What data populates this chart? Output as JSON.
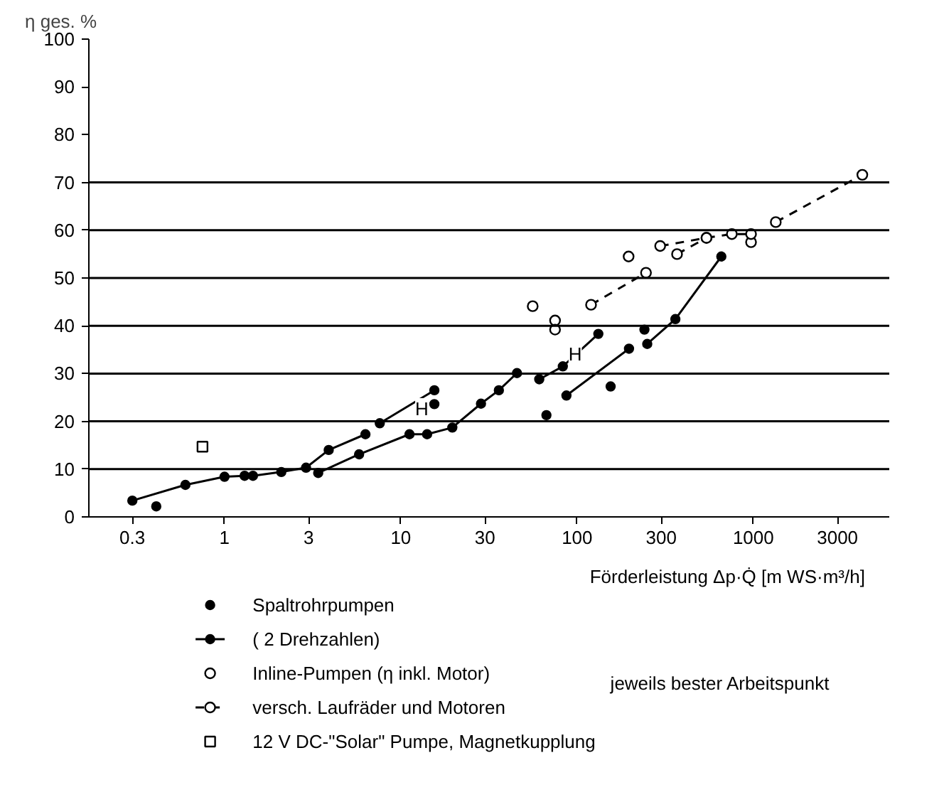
{
  "chart_data": {
    "type": "line",
    "ylabel": "η ges. %",
    "xlabel": "Förderleistung Δp·Q̇ [m WS·m³/h]",
    "log": "x",
    "xlim": [
      0.17,
      5900
    ],
    "xticks": [
      0.3,
      1,
      3,
      10,
      30,
      100,
      300,
      1000,
      3000
    ],
    "ylim": [
      0,
      100
    ],
    "yticks": [
      0,
      10,
      20,
      30,
      40,
      50,
      60,
      70,
      80,
      90,
      100
    ],
    "grid": false,
    "legend": "bottom",
    "ref_lines": [
      {
        "axis": "y",
        "value": 10,
        "color": "#000000"
      },
      {
        "axis": "y",
        "value": 20,
        "color": "#000000"
      },
      {
        "axis": "y",
        "value": 30,
        "color": "#000000"
      },
      {
        "axis": "y",
        "value": 40,
        "color": "#000000"
      },
      {
        "axis": "y",
        "value": 50,
        "color": "#000000"
      },
      {
        "axis": "y",
        "value": 60,
        "color": "#000000"
      },
      {
        "axis": "y",
        "value": 70,
        "color": "#000000"
      }
    ],
    "annotations": [
      {
        "text": "H",
        "x": 11.2,
        "y": 20.1
      },
      {
        "text": "H",
        "x": 83,
        "y": 31.5
      },
      "jeweils bester Arbeitspunkt"
    ],
    "series": [
      {
        "name": "Spaltrohrpumpen",
        "type": "scatter",
        "marker": "circle",
        "color": "#000000",
        "x": [
          0.41,
          15.5,
          67,
          155,
          241
        ],
        "values": [
          2.2,
          23.6,
          21.3,
          27.3,
          39.2
        ]
      },
      {
        "name": "( 2 Drehzahlen)",
        "type": "line",
        "marker": "circle",
        "line_style": "solid",
        "color": "#000000",
        "x": [
          0.3,
          0.6,
          1.0,
          1.3
        ],
        "values": [
          3.4,
          6.7,
          8.4,
          8.6
        ]
      },
      {
        "type": "line",
        "marker": "circle",
        "line_style": "solid",
        "color": "#000000",
        "x": [
          1.45,
          2.1,
          2.9,
          3.9,
          6.3
        ],
        "values": [
          8.6,
          9.4,
          10.3,
          14.0,
          17.3
        ]
      },
      {
        "type": "line",
        "marker": "circle",
        "line_style": "solid",
        "color": "#000000",
        "x": [
          3.4,
          5.8,
          11.2,
          14.1,
          19.6,
          28.5,
          36,
          45.6
        ],
        "values": [
          9.2,
          13.1,
          17.3,
          17.3,
          18.7,
          23.7,
          26.5,
          30.1
        ]
      },
      {
        "type": "line",
        "marker": "circle",
        "line_style": "solid",
        "color": "#000000",
        "x": [
          7.6,
          15.5
        ],
        "values": [
          19.6,
          26.5
        ]
      },
      {
        "type": "line",
        "marker": "circle",
        "line_style": "solid",
        "color": "#000000",
        "x": [
          61,
          83,
          132
        ],
        "values": [
          28.8,
          31.5,
          38.3
        ]
      },
      {
        "type": "line",
        "marker": "circle",
        "line_style": "solid",
        "color": "#000000",
        "x": [
          87,
          197
        ],
        "values": [
          25.4,
          35.2
        ]
      },
      {
        "type": "line",
        "marker": "circle",
        "line_style": "solid",
        "color": "#000000",
        "x": [
          250,
          361,
          658
        ],
        "values": [
          36.2,
          41.4,
          54.5
        ]
      },
      {
        "name": "Inline-Pumpen (η inkl. Motor)",
        "type": "scatter",
        "marker": "circle_open",
        "color": "#000000",
        "x": [
          56,
          75,
          75,
          196,
          970
        ],
        "values": [
          44.1,
          41.1,
          39.2,
          54.5,
          57.5
        ]
      },
      {
        "name": "versch. Laufräder und Motoren",
        "type": "line",
        "marker": "circle_open",
        "line_style": "dashed",
        "color": "#000000",
        "x": [
          120,
          246
        ],
        "values": [
          44.4,
          51.1
        ]
      },
      {
        "type": "line",
        "marker": "circle_open",
        "line_style": "dashed",
        "color": "#000000",
        "x": [
          296,
          542,
          755,
          970
        ],
        "values": [
          56.7,
          58.4,
          59.2,
          59.2
        ]
      },
      {
        "type": "line",
        "marker": "circle_open",
        "line_style": "dashed",
        "color": "#000000",
        "x": [
          369,
          542
        ],
        "values": [
          55.0,
          58.4
        ]
      },
      {
        "type": "line",
        "marker": "circle_open",
        "line_style": "dashed",
        "color": "#000000",
        "x": [
          1340,
          4150
        ],
        "values": [
          61.7,
          71.6
        ]
      },
      {
        "name": "12 V DC-\"Solar\" Pumpe, Magnetkupplung",
        "type": "scatter",
        "marker": "square_open",
        "color": "#000000",
        "x": [
          0.75
        ],
        "values": [
          14.7
        ]
      }
    ]
  }
}
